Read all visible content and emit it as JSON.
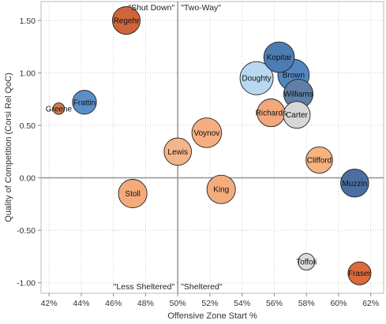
{
  "chart_data": {
    "type": "scatter",
    "xlabel": "Offensive Zone Start %",
    "ylabel": "Quality of Competition (Corsi Rel QoC)",
    "xlim": [
      41.5,
      62.8
    ],
    "ylim": [
      -1.1,
      1.68
    ],
    "x_ticks": [
      {
        "v": 42,
        "label": "42%"
      },
      {
        "v": 44,
        "label": "44%"
      },
      {
        "v": 46,
        "label": "46%"
      },
      {
        "v": 48,
        "label": "48%"
      },
      {
        "v": 50,
        "label": "50%"
      },
      {
        "v": 52,
        "label": "52%"
      },
      {
        "v": 54,
        "label": "54%"
      },
      {
        "v": 56,
        "label": "56%"
      },
      {
        "v": 58,
        "label": "58%"
      },
      {
        "v": 60,
        "label": "60%"
      },
      {
        "v": 62,
        "label": "62%"
      }
    ],
    "y_ticks": [
      {
        "v": 1.5,
        "label": "1.50"
      },
      {
        "v": 1.0,
        "label": "1.00"
      },
      {
        "v": 0.5,
        "label": "0.50"
      },
      {
        "v": 0.0,
        "label": "0.00"
      },
      {
        "v": -0.5,
        "label": "-0.50"
      },
      {
        "v": -1.0,
        "label": "-1.00"
      }
    ],
    "gridlines": "dotted",
    "reference_lines": {
      "x": 50,
      "y": 0
    },
    "quadrant_labels": [
      {
        "text": "\"Shut Down\"",
        "pos": "top-left"
      },
      {
        "text": "\"Two-Way\"",
        "pos": "top-right"
      },
      {
        "text": "\"Less Sheltered\"",
        "pos": "bottom-left"
      },
      {
        "text": "\"Sheltered\"",
        "pos": "bottom-right"
      }
    ],
    "points": [
      {
        "name": "Regehr",
        "x": 46.8,
        "y": 1.5,
        "size": 0.7,
        "color": "#d0643a"
      },
      {
        "name": "Greene",
        "x": 42.6,
        "y": 0.66,
        "size": 0.12,
        "color": "#d27a4b"
      },
      {
        "name": "Frattin",
        "x": 44.2,
        "y": 0.72,
        "size": 0.52,
        "color": "#5b8fc7"
      },
      {
        "name": "Kopitar",
        "x": 56.3,
        "y": 1.15,
        "size": 0.85,
        "color": "#4d7cb3"
      },
      {
        "name": "Brown",
        "x": 57.2,
        "y": 0.98,
        "size": 0.9,
        "color": "#5487c0"
      },
      {
        "name": "Doughty",
        "x": 54.9,
        "y": 0.95,
        "size": 1.0,
        "color": "#b7d8ef"
      },
      {
        "name": "Williams",
        "x": 57.5,
        "y": 0.8,
        "size": 0.78,
        "color": "#5f7fa6"
      },
      {
        "name": "Richards",
        "x": 55.8,
        "y": 0.62,
        "size": 0.7,
        "color": "#f3a87a"
      },
      {
        "name": "Carter",
        "x": 57.4,
        "y": 0.6,
        "size": 0.66,
        "color": "#d7d7d7"
      },
      {
        "name": "Voynov",
        "x": 51.8,
        "y": 0.43,
        "size": 0.8,
        "color": "#f4ae7f"
      },
      {
        "name": "Lewis",
        "x": 50.0,
        "y": 0.25,
        "size": 0.68,
        "color": "#f5b48a"
      },
      {
        "name": "Clifford",
        "x": 58.8,
        "y": 0.17,
        "size": 0.64,
        "color": "#f6b27f"
      },
      {
        "name": "Muzzin",
        "x": 61.0,
        "y": -0.05,
        "size": 0.72,
        "color": "#4a6fa0"
      },
      {
        "name": "Stoll",
        "x": 47.2,
        "y": -0.15,
        "size": 0.74,
        "color": "#f4aa7b"
      },
      {
        "name": "King",
        "x": 52.7,
        "y": -0.11,
        "size": 0.74,
        "color": "#f4ac7d"
      },
      {
        "name": "Toffoli",
        "x": 58.0,
        "y": -0.8,
        "size": 0.25,
        "color": "#dcdcdc"
      },
      {
        "name": "Fraser",
        "x": 61.3,
        "y": -0.91,
        "size": 0.48,
        "color": "#dc6a3b"
      }
    ]
  }
}
